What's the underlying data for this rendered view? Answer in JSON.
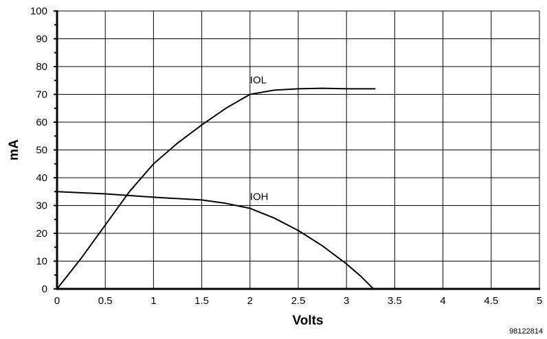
{
  "chart_data": {
    "type": "line",
    "title": "",
    "xlabel": "Volts",
    "ylabel": "mA",
    "xlim": [
      0,
      5
    ],
    "ylim": [
      0,
      100
    ],
    "grid": true,
    "x_ticks": [
      {
        "value": 0,
        "label": "0"
      },
      {
        "value": 0.5,
        "label": "0.5"
      },
      {
        "value": 1,
        "label": "1"
      },
      {
        "value": 1.5,
        "label": "1.5"
      },
      {
        "value": 2,
        "label": "2"
      },
      {
        "value": 2.5,
        "label": "2.5"
      },
      {
        "value": 3,
        "label": "3"
      },
      {
        "value": 3.5,
        "label": "3.5"
      },
      {
        "value": 4,
        "label": "4"
      },
      {
        "value": 4.5,
        "label": "4.5"
      },
      {
        "value": 5,
        "label": "5"
      }
    ],
    "y_ticks": [
      {
        "value": 0,
        "label": "0"
      },
      {
        "value": 10,
        "label": "10"
      },
      {
        "value": 20,
        "label": "20"
      },
      {
        "value": 30,
        "label": "30"
      },
      {
        "value": 40,
        "label": "40"
      },
      {
        "value": 50,
        "label": "50"
      },
      {
        "value": 60,
        "label": "60"
      },
      {
        "value": 70,
        "label": "70"
      },
      {
        "value": 80,
        "label": "80"
      },
      {
        "value": 90,
        "label": "90"
      },
      {
        "value": 100,
        "label": "100"
      }
    ],
    "series": [
      {
        "name": "IOL",
        "points": [
          [
            0,
            0
          ],
          [
            0.25,
            11
          ],
          [
            0.5,
            23
          ],
          [
            0.75,
            35
          ],
          [
            1,
            45
          ],
          [
            1.25,
            52.5
          ],
          [
            1.5,
            59
          ],
          [
            1.75,
            65
          ],
          [
            2,
            70
          ],
          [
            2.25,
            71.5
          ],
          [
            2.5,
            72
          ],
          [
            2.75,
            72.2
          ],
          [
            3,
            72
          ],
          [
            3.3,
            72
          ]
        ]
      },
      {
        "name": "IOH",
        "points": [
          [
            0,
            35
          ],
          [
            0.5,
            34.2
          ],
          [
            1,
            33
          ],
          [
            1.5,
            32
          ],
          [
            1.75,
            30.8
          ],
          [
            2,
            29
          ],
          [
            2.25,
            25.5
          ],
          [
            2.5,
            21
          ],
          [
            2.75,
            15.5
          ],
          [
            3,
            9
          ],
          [
            3.15,
            4.5
          ],
          [
            3.28,
            0
          ]
        ]
      }
    ],
    "annotations": [
      {
        "text": "IOL",
        "x": 2.0,
        "y": 74
      },
      {
        "text": "IOH",
        "x": 2.0,
        "y": 32
      }
    ],
    "figure_code": "98122814"
  }
}
